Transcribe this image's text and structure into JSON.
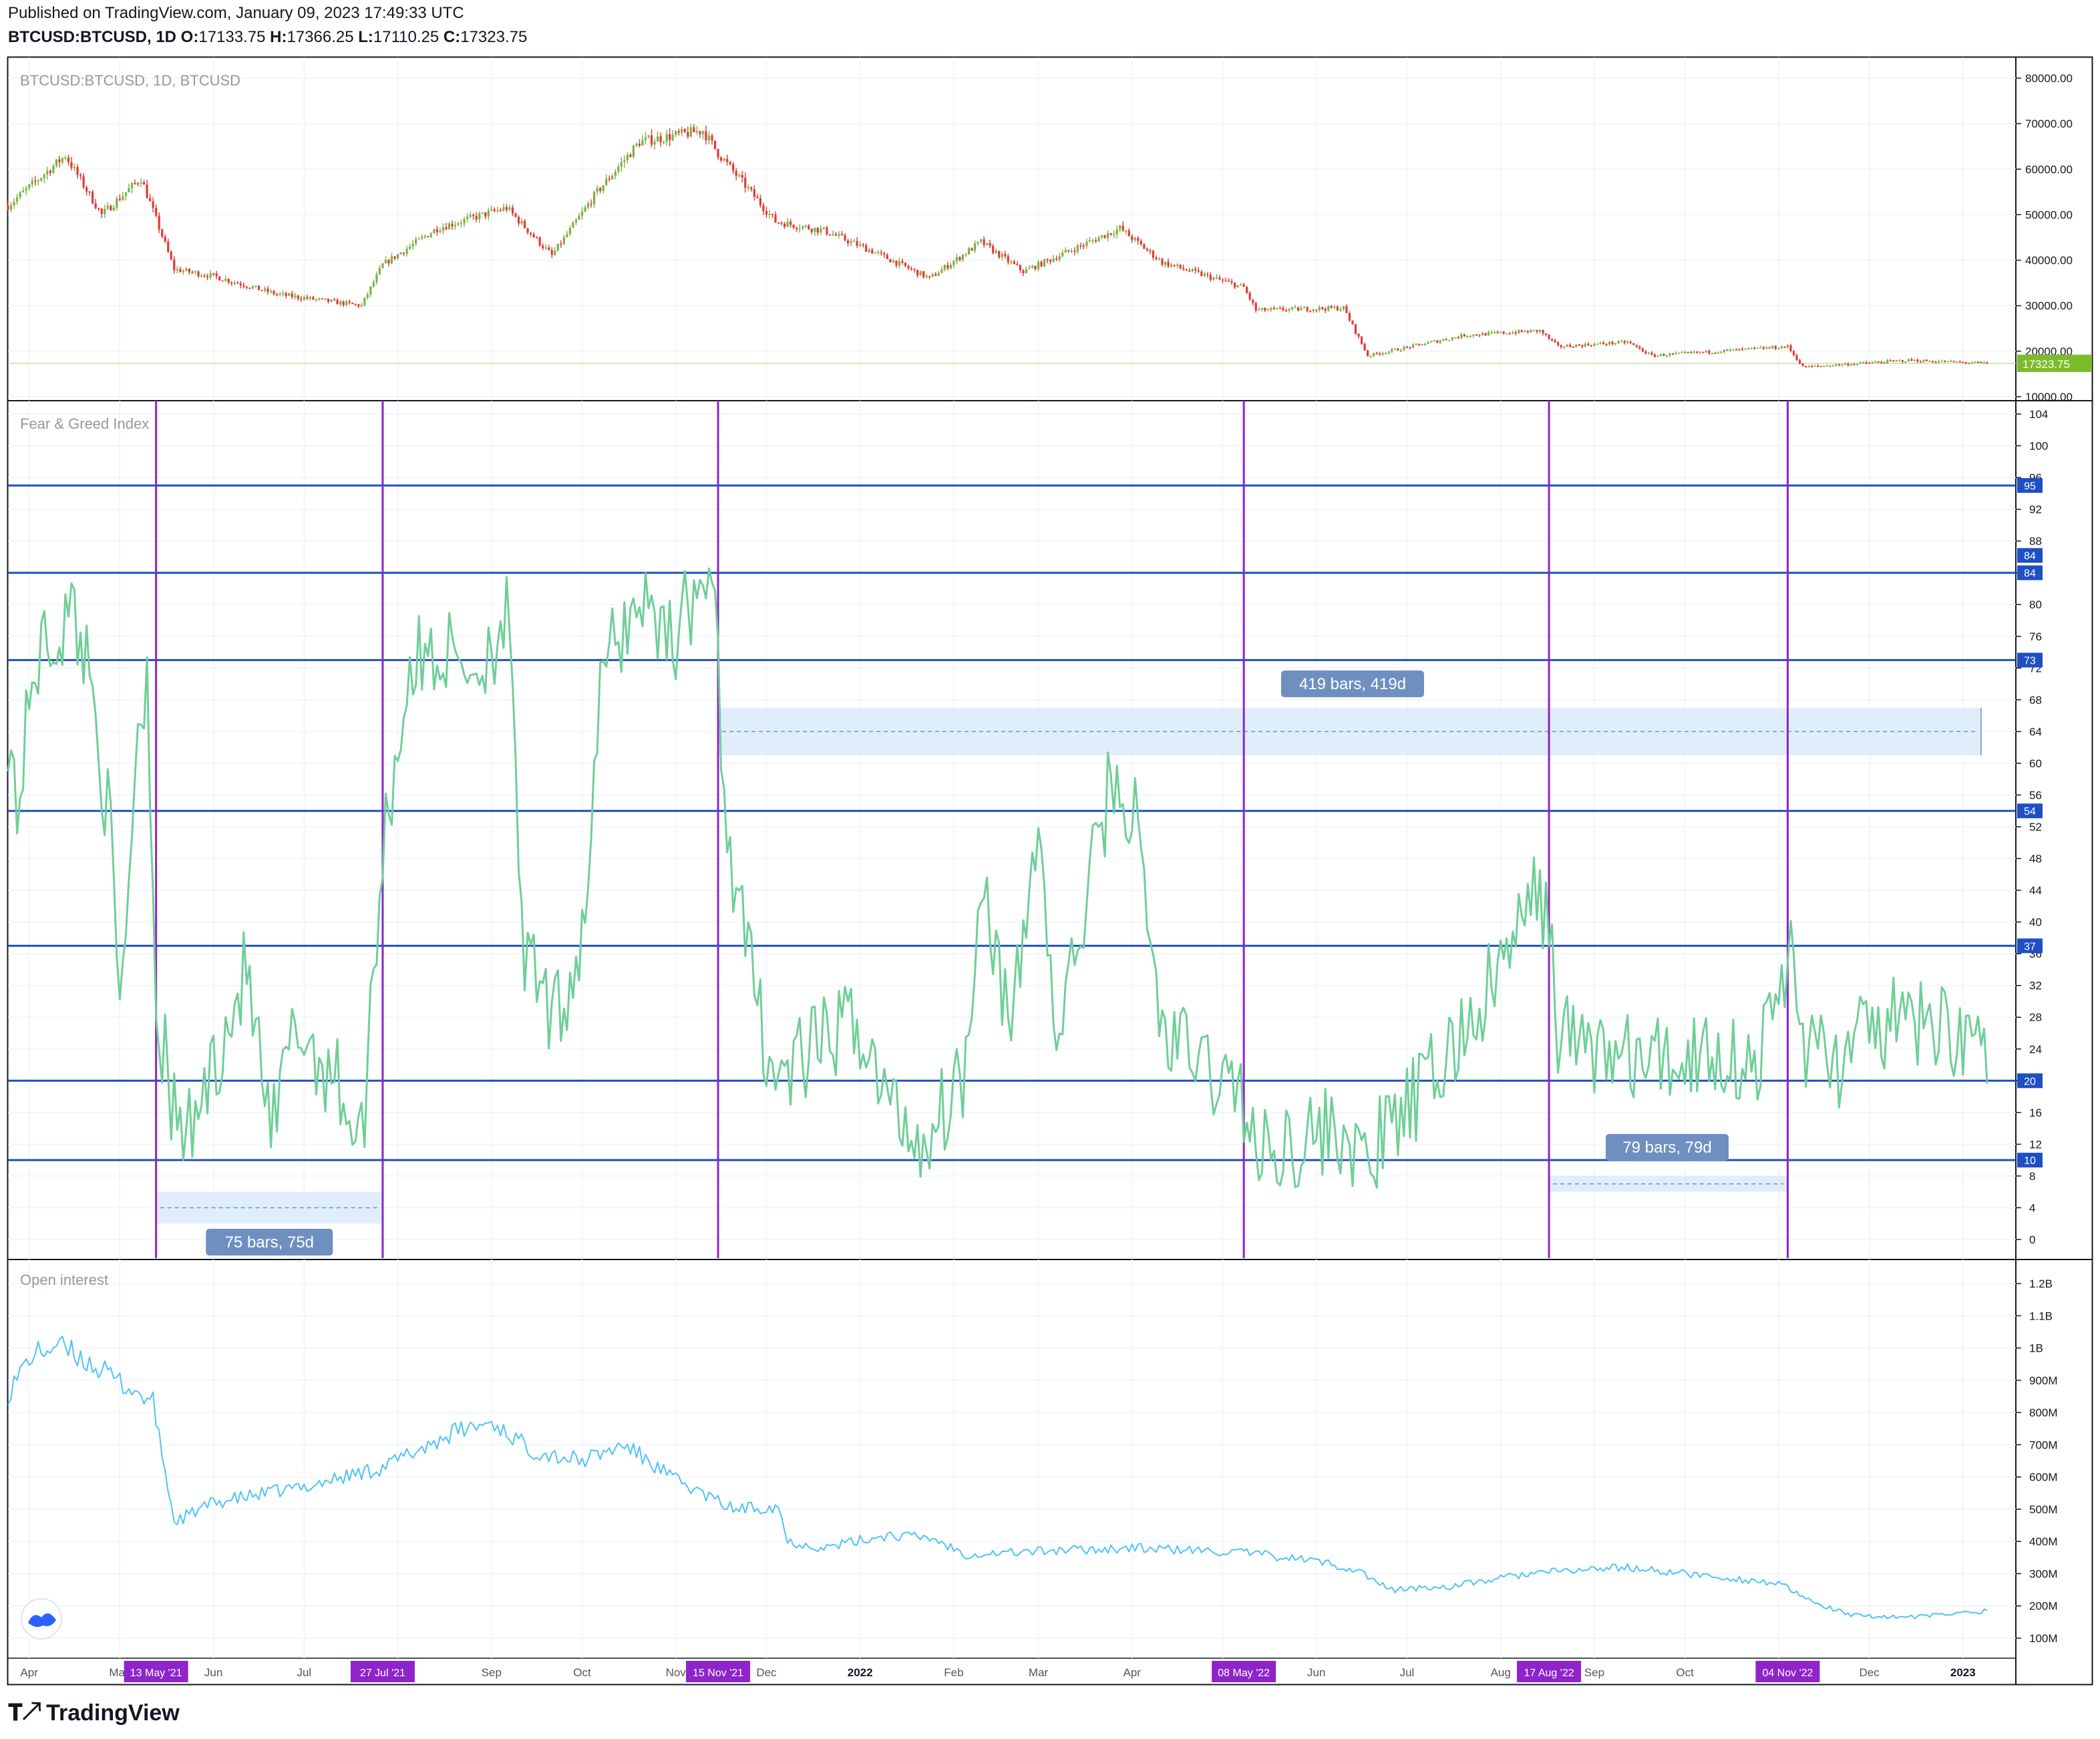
{
  "header": {
    "published": "Published on TradingView.com, January 09, 2023 17:49:33 UTC",
    "symbol": "BTCUSD:BTCUSD, 1D",
    "o_label": "O:",
    "o": "17133.75",
    "h_label": "H:",
    "h": "17366.25",
    "l_label": "L:",
    "l": "17110.25",
    "c_label": "C:",
    "c": "17323.75"
  },
  "footer": {
    "brand": "TradingView",
    "logo_icon": "tradingview-logo-icon"
  },
  "colors": {
    "up": "#53b987",
    "down": "#eb4d5c",
    "bar_green": "#7cb342",
    "fg_line": "#6fcf97",
    "oi_line": "#4fc3f7",
    "hline": "#1e4fc4",
    "vline": "#8e24c9",
    "range_fill": "#d6e8fb",
    "range_label_bg": "#6f8fc1",
    "last_price_bg": "#7cbc2a"
  },
  "chart_data": [
    {
      "type": "candlestick",
      "title": "BTCUSD:BTCUSD, 1D, BTCUSD",
      "y_ticks": [
        "80000.00",
        "70000.00",
        "60000.00",
        "50000.00",
        "40000.00",
        "30000.00",
        "20000.00",
        "10000.00"
      ],
      "ylim": [
        10000,
        80000
      ],
      "last_price": "17323.75",
      "x_range": [
        "2021-03-25",
        "2023-01-09"
      ],
      "close_anchors": [
        [
          "2021-03-25",
          52000
        ],
        [
          "2021-04-13",
          63000
        ],
        [
          "2021-04-25",
          50000
        ],
        [
          "2021-05-08",
          58000
        ],
        [
          "2021-05-13",
          49000
        ],
        [
          "2021-05-19",
          38000
        ],
        [
          "2021-06-01",
          36500
        ],
        [
          "2021-06-22",
          32500
        ],
        [
          "2021-07-20",
          30000
        ],
        [
          "2021-07-27",
          39000
        ],
        [
          "2021-08-14",
          47000
        ],
        [
          "2021-09-06",
          51500
        ],
        [
          "2021-09-21",
          41000
        ],
        [
          "2021-10-06",
          55000
        ],
        [
          "2021-10-20",
          66000
        ],
        [
          "2021-11-10",
          68500
        ],
        [
          "2021-11-15",
          63500
        ],
        [
          "2021-12-04",
          48500
        ],
        [
          "2021-12-20",
          46500
        ],
        [
          "2022-01-05",
          42000
        ],
        [
          "2022-01-24",
          36000
        ],
        [
          "2022-02-10",
          44000
        ],
        [
          "2022-02-24",
          37500
        ],
        [
          "2022-03-28",
          47000
        ],
        [
          "2022-04-11",
          39500
        ],
        [
          "2022-05-08",
          34000
        ],
        [
          "2022-05-12",
          29000
        ],
        [
          "2022-06-10",
          29500
        ],
        [
          "2022-06-18",
          19000
        ],
        [
          "2022-07-20",
          23500
        ],
        [
          "2022-08-14",
          24500
        ],
        [
          "2022-08-20",
          21000
        ],
        [
          "2022-09-12",
          22000
        ],
        [
          "2022-09-20",
          19000
        ],
        [
          "2022-11-04",
          21000
        ],
        [
          "2022-11-09",
          16500
        ],
        [
          "2022-12-14",
          18000
        ],
        [
          "2023-01-09",
          17323.75
        ]
      ]
    },
    {
      "type": "line",
      "title": "Fear & Greed Index",
      "y_ticks": [
        "104",
        "100",
        "96",
        "92",
        "88",
        "84",
        "80",
        "76",
        "72",
        "68",
        "64",
        "60",
        "56",
        "52",
        "48",
        "44",
        "40",
        "36",
        "32",
        "28",
        "24",
        "20",
        "16",
        "12",
        "8",
        "4",
        "0"
      ],
      "ylim": [
        0,
        104
      ],
      "hlines": [
        95,
        84,
        73,
        54,
        37,
        20,
        10
      ],
      "hline_extra_label": "84",
      "x_range": [
        "2021-03-25",
        "2023-01-09"
      ],
      "anchors": [
        [
          "2021-03-25",
          65
        ],
        [
          "2021-03-28",
          54
        ],
        [
          "2021-04-03",
          73
        ],
        [
          "2021-04-16",
          79
        ],
        [
          "2021-04-22",
          70
        ],
        [
          "2021-04-28",
          50
        ],
        [
          "2021-05-01",
          27
        ],
        [
          "2021-05-06",
          60
        ],
        [
          "2021-05-10",
          73
        ],
        [
          "2021-05-13",
          30
        ],
        [
          "2021-05-19",
          15
        ],
        [
          "2021-05-24",
          13
        ],
        [
          "2021-06-01",
          22
        ],
        [
          "2021-06-12",
          34
        ],
        [
          "2021-06-20",
          12
        ],
        [
          "2021-06-28",
          27
        ],
        [
          "2021-07-12",
          20
        ],
        [
          "2021-07-20",
          12
        ],
        [
          "2021-07-27",
          50
        ],
        [
          "2021-08-05",
          72
        ],
        [
          "2021-08-14",
          74
        ],
        [
          "2021-08-28",
          72
        ],
        [
          "2021-09-06",
          79
        ],
        [
          "2021-09-12",
          35
        ],
        [
          "2021-09-22",
          27
        ],
        [
          "2021-10-01",
          38
        ],
        [
          "2021-10-08",
          72
        ],
        [
          "2021-10-20",
          81
        ],
        [
          "2021-11-01",
          76
        ],
        [
          "2021-11-10",
          84
        ],
        [
          "2021-11-15",
          75
        ],
        [
          "2021-11-17",
          54
        ],
        [
          "2021-11-26",
          33
        ],
        [
          "2021-12-04",
          20
        ],
        [
          "2021-12-18",
          24
        ],
        [
          "2021-12-31",
          28
        ],
        [
          "2022-01-09",
          18
        ],
        [
          "2022-01-22",
          12
        ],
        [
          "2022-02-05",
          22
        ],
        [
          "2022-02-10",
          48
        ],
        [
          "2022-02-20",
          25
        ],
        [
          "2022-03-01",
          53
        ],
        [
          "2022-03-07",
          24
        ],
        [
          "2022-03-25",
          58
        ],
        [
          "2022-04-02",
          53
        ],
        [
          "2022-04-11",
          26
        ],
        [
          "2022-05-08",
          18
        ],
        [
          "2022-05-12",
          10
        ],
        [
          "2022-05-20",
          12
        ],
        [
          "2022-06-10",
          14
        ],
        [
          "2022-06-15",
          9
        ],
        [
          "2022-07-05",
          18
        ],
        [
          "2022-07-25",
          29
        ],
        [
          "2022-08-14",
          44
        ],
        [
          "2022-08-17",
          40
        ],
        [
          "2022-08-20",
          26
        ],
        [
          "2022-09-01",
          24
        ],
        [
          "2022-09-20",
          22
        ],
        [
          "2022-10-10",
          24
        ],
        [
          "2022-10-25",
          22
        ],
        [
          "2022-11-03",
          33
        ],
        [
          "2022-11-05",
          38
        ],
        [
          "2022-11-09",
          25
        ],
        [
          "2022-11-20",
          22
        ],
        [
          "2022-12-05",
          27
        ],
        [
          "2022-12-25",
          27
        ],
        [
          "2023-01-09",
          25
        ]
      ],
      "markers": [
        "13 May '21",
        "27 Jul '21",
        "15 Nov '21",
        "08 May '22",
        "17 Aug '22",
        "04 Nov '22"
      ],
      "marker_dates": [
        "2021-05-13",
        "2021-07-27",
        "2021-11-15",
        "2022-05-08",
        "2022-08-17",
        "2022-11-04"
      ],
      "ranges": [
        {
          "label": "75 bars, 75d",
          "from": "2021-05-13",
          "to": "2021-07-27",
          "y_from": 2,
          "y_to": 6
        },
        {
          "label": "419 bars, 419d",
          "from": "2021-11-15",
          "to": "2023-01-07",
          "y_from": 61,
          "y_to": 67
        },
        {
          "label": "79 bars, 79d",
          "from": "2022-08-17",
          "to": "2022-11-04",
          "y_from": 6,
          "y_to": 8
        }
      ]
    },
    {
      "type": "line",
      "title": "Open interest",
      "y_ticks": [
        "1.2B",
        "1.1B",
        "1B",
        "900M",
        "800M",
        "700M",
        "600M",
        "500M",
        "400M",
        "300M",
        "200M",
        "100M"
      ],
      "ylim": [
        100,
        1200
      ],
      "unit": "M",
      "x_range": [
        "2021-03-25",
        "2023-01-09"
      ],
      "anchors": [
        [
          "2021-03-25",
          860
        ],
        [
          "2021-04-01",
          970
        ],
        [
          "2021-04-10",
          1010
        ],
        [
          "2021-04-20",
          960
        ],
        [
          "2021-04-30",
          900
        ],
        [
          "2021-05-12",
          830
        ],
        [
          "2021-05-19",
          460
        ],
        [
          "2021-06-01",
          520
        ],
        [
          "2021-07-01",
          570
        ],
        [
          "2021-07-27",
          630
        ],
        [
          "2021-08-20",
          740
        ],
        [
          "2021-09-01",
          770
        ],
        [
          "2021-09-15",
          680
        ],
        [
          "2021-10-01",
          650
        ],
        [
          "2021-10-15",
          700
        ],
        [
          "2021-11-01",
          590
        ],
        [
          "2021-11-20",
          500
        ],
        [
          "2021-12-05",
          510
        ],
        [
          "2021-12-08",
          400
        ],
        [
          "2021-12-20",
          380
        ],
        [
          "2022-01-10",
          420
        ],
        [
          "2022-01-25",
          410
        ],
        [
          "2022-02-05",
          360
        ],
        [
          "2022-03-01",
          370
        ],
        [
          "2022-04-01",
          380
        ],
        [
          "2022-05-08",
          365
        ],
        [
          "2022-06-01",
          340
        ],
        [
          "2022-06-15",
          310
        ],
        [
          "2022-06-25",
          250
        ],
        [
          "2022-07-15",
          260
        ],
        [
          "2022-08-10",
          300
        ],
        [
          "2022-09-10",
          320
        ],
        [
          "2022-10-01",
          300
        ],
        [
          "2022-11-01",
          270
        ],
        [
          "2022-11-10",
          220
        ],
        [
          "2022-11-25",
          170
        ],
        [
          "2022-12-15",
          165
        ],
        [
          "2023-01-09",
          185
        ]
      ],
      "x_ticks": [
        "Apr",
        "May",
        "Jun",
        "Jul",
        "Aug",
        "Sep",
        "Oct",
        "Nov",
        "Dec",
        "2022",
        "Feb",
        "Mar",
        "Apr",
        "May",
        "Jun",
        "Jul",
        "Aug",
        "Sep",
        "Oct",
        "Nov",
        "Dec",
        "2023"
      ],
      "x_tick_dates": [
        "2021-04-01",
        "2021-05-01",
        "2021-06-01",
        "2021-07-01",
        "2021-08-01",
        "2021-09-01",
        "2021-10-01",
        "2021-11-01",
        "2021-12-01",
        "2022-01-01",
        "2022-02-01",
        "2022-03-01",
        "2022-04-01",
        "2022-05-01",
        "2022-06-01",
        "2022-07-01",
        "2022-08-01",
        "2022-09-01",
        "2022-10-01",
        "2022-11-01",
        "2022-12-01",
        "2023-01-01"
      ]
    }
  ]
}
